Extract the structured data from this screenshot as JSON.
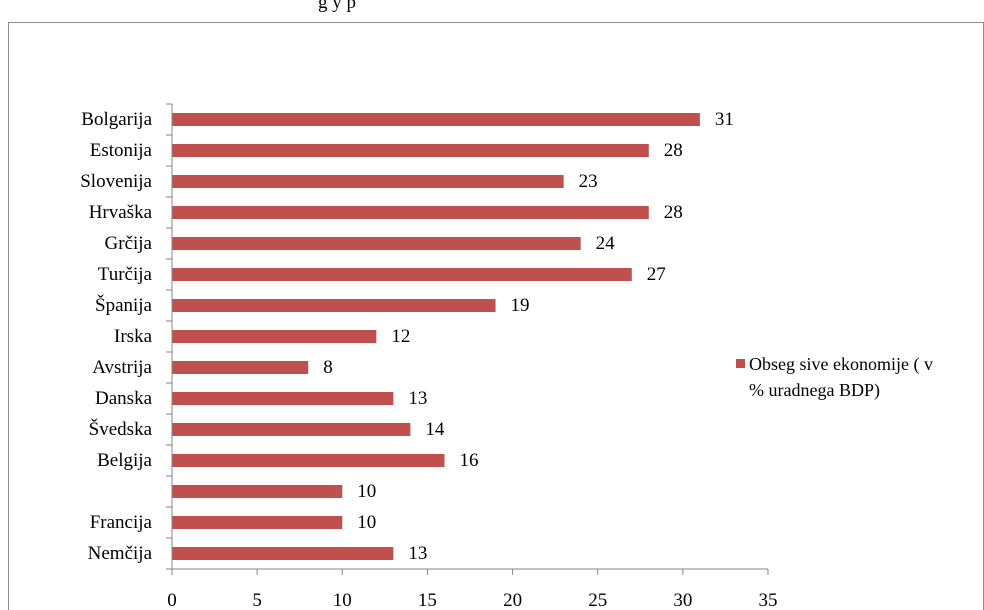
{
  "chart_data": {
    "type": "bar",
    "orientation": "horizontal",
    "title": "",
    "xlabel": "",
    "ylabel": "",
    "categories": [
      "Bolgarija",
      "Estonija",
      "Slovenija",
      "Hrvaška",
      "Grčija",
      "Turčija",
      "Španija",
      "Irska",
      "Avstrija",
      "Danska",
      "Švedska",
      "Belgija",
      "",
      "Francija",
      "Nemčija"
    ],
    "series": [
      {
        "name": "Obseg sive ekonomije ( v % uradnega BDP)",
        "legend_lines": [
          "Obseg sive ekonomije ( v",
          "% uradnega BDP)"
        ],
        "values": [
          31,
          28,
          23,
          28,
          24,
          27,
          19,
          12,
          8,
          13,
          14,
          16,
          10,
          10,
          13
        ],
        "color": "#c0504d"
      }
    ],
    "xlim": [
      0,
      35
    ],
    "x_ticks": [
      0,
      5,
      10,
      15,
      20,
      25,
      30,
      35
    ],
    "grid": false,
    "legend_position": "right"
  }
}
